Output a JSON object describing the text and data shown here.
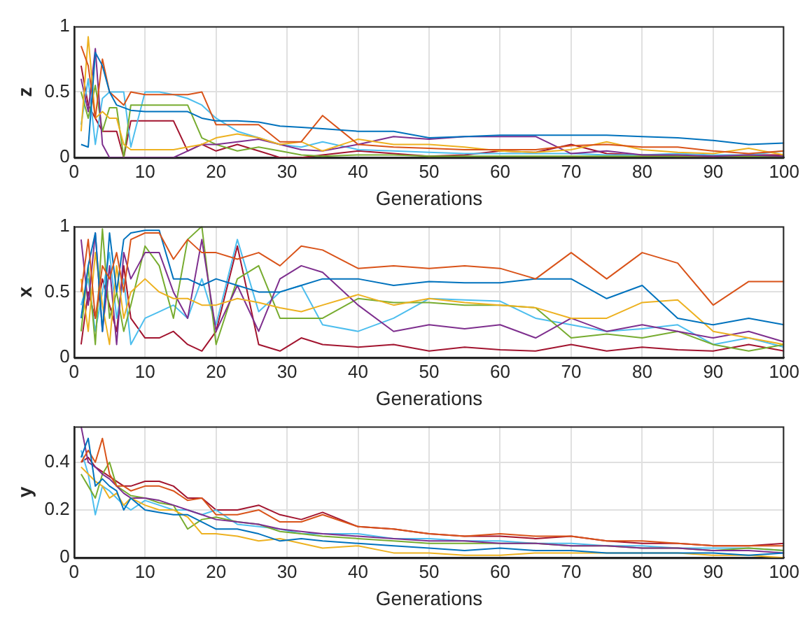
{
  "chart_data": [
    {
      "type": "line",
      "xlabel": "Generations",
      "ylabel": "z",
      "xlim": [
        0,
        100
      ],
      "xticks": [
        0,
        10,
        20,
        30,
        40,
        50,
        60,
        70,
        80,
        90,
        100
      ],
      "ylim": [
        0,
        1
      ],
      "yticks": [
        0,
        0.5,
        1
      ],
      "grid": true,
      "legend": false,
      "marker": "none",
      "line_style": "solid",
      "x": [
        1,
        2,
        3,
        4,
        5,
        6,
        7,
        8,
        10,
        12,
        14,
        16,
        18,
        20,
        23,
        26,
        29,
        32,
        35,
        40,
        45,
        50,
        55,
        60,
        65,
        70,
        75,
        80,
        85,
        90,
        95,
        100
      ],
      "series": [
        {
          "color": "#0072bd",
          "values": [
            0.1,
            0.08,
            0.8,
            0.7,
            0.5,
            0.4,
            0.38,
            0.36,
            0.35,
            0.35,
            0.35,
            0.35,
            0.3,
            0.28,
            0.28,
            0.27,
            0.24,
            0.23,
            0.22,
            0.2,
            0.2,
            0.15,
            0.16,
            0.17,
            0.17,
            0.17,
            0.17,
            0.16,
            0.15,
            0.13,
            0.1,
            0.11
          ]
        },
        {
          "color": "#d95319",
          "values": [
            0.85,
            0.7,
            0.3,
            0.75,
            0.5,
            0.45,
            0.4,
            0.5,
            0.48,
            0.48,
            0.48,
            0.48,
            0.5,
            0.25,
            0.25,
            0.25,
            0.12,
            0.12,
            0.32,
            0.1,
            0.08,
            0.07,
            0.06,
            0.06,
            0.06,
            0.09,
            0.1,
            0.08,
            0.08,
            0.05,
            0.03,
            0.05
          ]
        },
        {
          "color": "#edb120",
          "values": [
            0.2,
            0.92,
            0.3,
            0.35,
            0.3,
            0.3,
            0.1,
            0.06,
            0.06,
            0.06,
            0.06,
            0.08,
            0.1,
            0.15,
            0.18,
            0.15,
            0.1,
            0.12,
            0.05,
            0.14,
            0.1,
            0.1,
            0.08,
            0.05,
            0.04,
            0.06,
            0.12,
            0.06,
            0.04,
            0.03,
            0.07,
            0.02
          ]
        },
        {
          "color": "#7e2f8e",
          "values": [
            0.6,
            0.35,
            0.83,
            0.1,
            0,
            0,
            0,
            0,
            0,
            0,
            0,
            0.05,
            0.1,
            0.1,
            0.12,
            0.14,
            0.1,
            0.06,
            0.05,
            0.1,
            0.16,
            0.14,
            0.16,
            0.16,
            0.16,
            0.03,
            0.05,
            0.02,
            0.02,
            0.01,
            0.02,
            0.01
          ]
        },
        {
          "color": "#77ac30",
          "values": [
            0.5,
            0.3,
            0.55,
            0.2,
            0.38,
            0.38,
            0,
            0.4,
            0.4,
            0.4,
            0.4,
            0.4,
            0.15,
            0.1,
            0.05,
            0.08,
            0.05,
            0.02,
            0.01,
            0.02,
            0.02,
            0.01,
            0.01,
            0.01,
            0.01,
            0.01,
            0.01,
            0.01,
            0.01,
            0.01,
            0.01,
            0.01
          ]
        },
        {
          "color": "#4dbeee",
          "values": [
            0.25,
            0.6,
            0.1,
            0.45,
            0.5,
            0.5,
            0.5,
            0.08,
            0.5,
            0.5,
            0.48,
            0.45,
            0.4,
            0.3,
            0.2,
            0.15,
            0.1,
            0.08,
            0.12,
            0.06,
            0.05,
            0.04,
            0.03,
            0.03,
            0.03,
            0.03,
            0.02,
            0.02,
            0.03,
            0.02,
            0.02,
            0.05
          ]
        },
        {
          "color": "#a2142f",
          "values": [
            0.7,
            0.4,
            0.3,
            0.2,
            0.2,
            0.2,
            0,
            0.28,
            0.28,
            0.28,
            0.28,
            0.05,
            0.1,
            0.05,
            0.1,
            0.05,
            0,
            0,
            0.02,
            0.05,
            0.03,
            0.01,
            0.02,
            0.05,
            0.04,
            0.1,
            0.03,
            0.02,
            0.01,
            0.01,
            0.02,
            0.02
          ]
        }
      ]
    },
    {
      "type": "line",
      "xlabel": "Generations",
      "ylabel": "x",
      "xlim": [
        0,
        100
      ],
      "xticks": [
        0,
        10,
        20,
        30,
        40,
        50,
        60,
        70,
        80,
        90,
        100
      ],
      "ylim": [
        0,
        1
      ],
      "yticks": [
        0,
        0.5,
        1
      ],
      "grid": true,
      "legend": false,
      "marker": "none",
      "line_style": "solid",
      "x": [
        1,
        2,
        3,
        4,
        5,
        6,
        7,
        8,
        10,
        12,
        14,
        16,
        18,
        20,
        23,
        26,
        29,
        32,
        35,
        40,
        45,
        50,
        55,
        60,
        65,
        70,
        75,
        80,
        85,
        90,
        95,
        100
      ],
      "series": [
        {
          "color": "#d95319",
          "values": [
            0.5,
            0.9,
            0.3,
            0.7,
            0.6,
            0.8,
            0.5,
            0.9,
            0.95,
            0.95,
            0.75,
            0.9,
            0.8,
            0.8,
            0.75,
            0.8,
            0.7,
            0.85,
            0.82,
            0.68,
            0.7,
            0.68,
            0.7,
            0.68,
            0.6,
            0.8,
            0.6,
            0.8,
            0.72,
            0.4,
            0.58,
            0.58
          ]
        },
        {
          "color": "#0072bd",
          "values": [
            0.3,
            0.7,
            0.95,
            0.2,
            0.95,
            0.5,
            0.9,
            0.95,
            0.97,
            0.97,
            0.6,
            0.6,
            0.55,
            0.6,
            0.55,
            0.5,
            0.5,
            0.55,
            0.6,
            0.6,
            0.55,
            0.58,
            0.57,
            0.57,
            0.6,
            0.6,
            0.45,
            0.55,
            0.3,
            0.25,
            0.3,
            0.25
          ]
        },
        {
          "color": "#edb120",
          "values": [
            0.6,
            0.2,
            0.8,
            0.4,
            0.1,
            0.7,
            0.3,
            0.5,
            0.6,
            0.5,
            0.45,
            0.45,
            0.4,
            0.4,
            0.45,
            0.42,
            0.38,
            0.35,
            0.4,
            0.48,
            0.4,
            0.45,
            0.42,
            0.4,
            0.38,
            0.3,
            0.3,
            0.42,
            0.44,
            0.2,
            0.15,
            0.1
          ]
        },
        {
          "color": "#7e2f8e",
          "values": [
            0.9,
            0.4,
            0.95,
            0.2,
            0.7,
            0.1,
            0.8,
            0.6,
            0.8,
            0.8,
            0.5,
            0.3,
            0.9,
            0.2,
            0.55,
            0.2,
            0.6,
            0.7,
            0.65,
            0.4,
            0.2,
            0.25,
            0.22,
            0.25,
            0.15,
            0.3,
            0.2,
            0.25,
            0.2,
            0.15,
            0.2,
            0.12
          ]
        },
        {
          "color": "#77ac30",
          "values": [
            0.2,
            0.7,
            0.1,
            0.98,
            0.3,
            0.5,
            0.2,
            0.4,
            0.85,
            0.7,
            0.3,
            0.9,
            1,
            0.1,
            0.6,
            0.7,
            0.3,
            0.3,
            0.3,
            0.45,
            0.42,
            0.42,
            0.4,
            0.4,
            0.38,
            0.15,
            0.18,
            0.15,
            0.2,
            0.1,
            0.05,
            0.1
          ]
        },
        {
          "color": "#4dbeee",
          "values": [
            0.4,
            0.6,
            0.2,
            0.5,
            0.8,
            0.3,
            0.6,
            0.1,
            0.3,
            0.35,
            0.4,
            0.3,
            0.6,
            0.25,
            0.9,
            0.35,
            0.5,
            0.55,
            0.25,
            0.2,
            0.3,
            0.45,
            0.44,
            0.43,
            0.3,
            0.25,
            0.2,
            0.22,
            0.25,
            0.1,
            0.15,
            0.08
          ]
        },
        {
          "color": "#a2142f",
          "values": [
            0.1,
            0.5,
            0.3,
            0.6,
            0.4,
            0.2,
            0.7,
            0.3,
            0.15,
            0.15,
            0.2,
            0.1,
            0.05,
            0.2,
            0.85,
            0.1,
            0.05,
            0.15,
            0.1,
            0.08,
            0.1,
            0.05,
            0.08,
            0.06,
            0.05,
            0.1,
            0.05,
            0.08,
            0.06,
            0.05,
            0.1,
            0.05
          ]
        }
      ]
    },
    {
      "type": "line",
      "xlabel": "Generations",
      "ylabel": "y",
      "xlim": [
        0,
        100
      ],
      "xticks": [
        0,
        10,
        20,
        30,
        40,
        50,
        60,
        70,
        80,
        90,
        100
      ],
      "ylim": [
        0,
        0.55
      ],
      "yticks": [
        0,
        0.2,
        0.4
      ],
      "grid": true,
      "legend": false,
      "marker": "none",
      "line_style": "solid",
      "x": [
        1,
        2,
        3,
        4,
        5,
        6,
        7,
        8,
        10,
        12,
        14,
        16,
        18,
        20,
        23,
        26,
        29,
        32,
        35,
        40,
        45,
        50,
        55,
        60,
        65,
        70,
        75,
        80,
        85,
        90,
        95,
        100
      ],
      "series": [
        {
          "color": "#0072bd",
          "values": [
            0.42,
            0.5,
            0.3,
            0.33,
            0.3,
            0.28,
            0.2,
            0.25,
            0.2,
            0.19,
            0.18,
            0.18,
            0.15,
            0.12,
            0.12,
            0.1,
            0.07,
            0.08,
            0.07,
            0.06,
            0.05,
            0.04,
            0.03,
            0.04,
            0.03,
            0.03,
            0.02,
            0.02,
            0.02,
            0.02,
            0.01,
            0.02
          ]
        },
        {
          "color": "#d95319",
          "values": [
            0.4,
            0.45,
            0.4,
            0.5,
            0.35,
            0.3,
            0.3,
            0.28,
            0.3,
            0.3,
            0.28,
            0.24,
            0.25,
            0.18,
            0.18,
            0.2,
            0.15,
            0.15,
            0.18,
            0.13,
            0.12,
            0.1,
            0.09,
            0.1,
            0.09,
            0.09,
            0.07,
            0.07,
            0.06,
            0.05,
            0.05,
            0.05
          ]
        },
        {
          "color": "#edb120",
          "values": [
            0.38,
            0.35,
            0.32,
            0.3,
            0.25,
            0.27,
            0.22,
            0.25,
            0.22,
            0.2,
            0.2,
            0.17,
            0.1,
            0.1,
            0.09,
            0.07,
            0.08,
            0.06,
            0.04,
            0.05,
            0.02,
            0.02,
            0.01,
            0.01,
            0.02,
            0.02,
            0.02,
            0.02,
            0.02,
            0.01,
            0.01,
            0
          ]
        },
        {
          "color": "#7e2f8e",
          "values": [
            0.55,
            0.4,
            0.38,
            0.35,
            0.33,
            0.3,
            0.27,
            0.25,
            0.25,
            0.24,
            0.22,
            0.2,
            0.18,
            0.16,
            0.15,
            0.14,
            0.12,
            0.11,
            0.1,
            0.09,
            0.08,
            0.07,
            0.07,
            0.06,
            0.06,
            0.05,
            0.05,
            0.04,
            0.04,
            0.03,
            0.03,
            0.02
          ]
        },
        {
          "color": "#77ac30",
          "values": [
            0.35,
            0.3,
            0.25,
            0.35,
            0.4,
            0.3,
            0.28,
            0.26,
            0.25,
            0.23,
            0.22,
            0.12,
            0.16,
            0.17,
            0.15,
            0.14,
            0.11,
            0.1,
            0.09,
            0.08,
            0.07,
            0.06,
            0.06,
            0.06,
            0.06,
            0.05,
            0.05,
            0.04,
            0.04,
            0.03,
            0.04,
            0.03
          ]
        },
        {
          "color": "#4dbeee",
          "values": [
            0.45,
            0.35,
            0.18,
            0.3,
            0.28,
            0.25,
            0.22,
            0.2,
            0.24,
            0.22,
            0.2,
            0.2,
            0.18,
            0.2,
            0.14,
            0.13,
            0.12,
            0.1,
            0.1,
            0.1,
            0.08,
            0.08,
            0.07,
            0.07,
            0.06,
            0.06,
            0.05,
            0.05,
            0.04,
            0.04,
            0.04,
            0.03
          ]
        },
        {
          "color": "#a2142f",
          "values": [
            0.4,
            0.42,
            0.38,
            0.36,
            0.34,
            0.32,
            0.3,
            0.3,
            0.32,
            0.32,
            0.3,
            0.25,
            0.25,
            0.2,
            0.2,
            0.22,
            0.18,
            0.16,
            0.19,
            0.13,
            0.12,
            0.1,
            0.09,
            0.09,
            0.08,
            0.09,
            0.07,
            0.06,
            0.06,
            0.05,
            0.05,
            0.06
          ]
        }
      ]
    }
  ]
}
